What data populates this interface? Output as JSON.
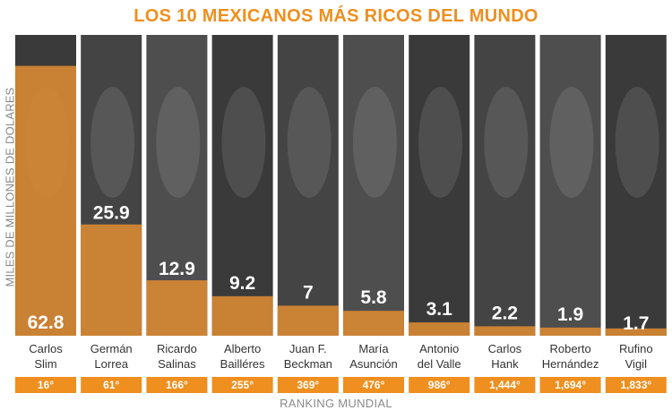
{
  "chart_data": {
    "type": "bar",
    "title": "LOS 10 MEXICANOS MÁS RICOS DEL MUNDO",
    "ylabel": "MILES DE MILLONES DE DOLARES",
    "xlabel": "RANKING MUNDIAL",
    "ylim": [
      0,
      70
    ],
    "grid": false,
    "legend": "none",
    "categories": [
      [
        "Carlos",
        "Slim"
      ],
      [
        "Germán",
        "Lorrea"
      ],
      [
        "Ricardo",
        "Salinas"
      ],
      [
        "Alberto",
        "Bailléres"
      ],
      [
        "Juan F.",
        "Beckman"
      ],
      [
        "María",
        "Asunción"
      ],
      [
        "Antonio",
        "del Valle"
      ],
      [
        "Carlos",
        "Hank"
      ],
      [
        "Roberto",
        "Hernández"
      ],
      [
        "Rufino",
        "Vigil"
      ]
    ],
    "values": [
      62.8,
      25.9,
      12.9,
      9.2,
      7,
      5.8,
      3.1,
      2.2,
      1.9,
      1.7
    ],
    "value_labels": [
      "62.8",
      "25.9",
      "12.9",
      "9.2",
      "7",
      "5.8",
      "3.1",
      "2.2",
      "1.9",
      "1.7"
    ],
    "ranking": [
      "16°",
      "61°",
      "166°",
      "255°",
      "369°",
      "476°",
      "986°",
      "1,444°",
      "1,694°",
      "1,833°"
    ],
    "colors": {
      "accent": "#ee8f1f",
      "bar_fill": "#d98a34",
      "photo_background": "#4d4d4d",
      "ranking_box": "#ee8f1f"
    }
  }
}
